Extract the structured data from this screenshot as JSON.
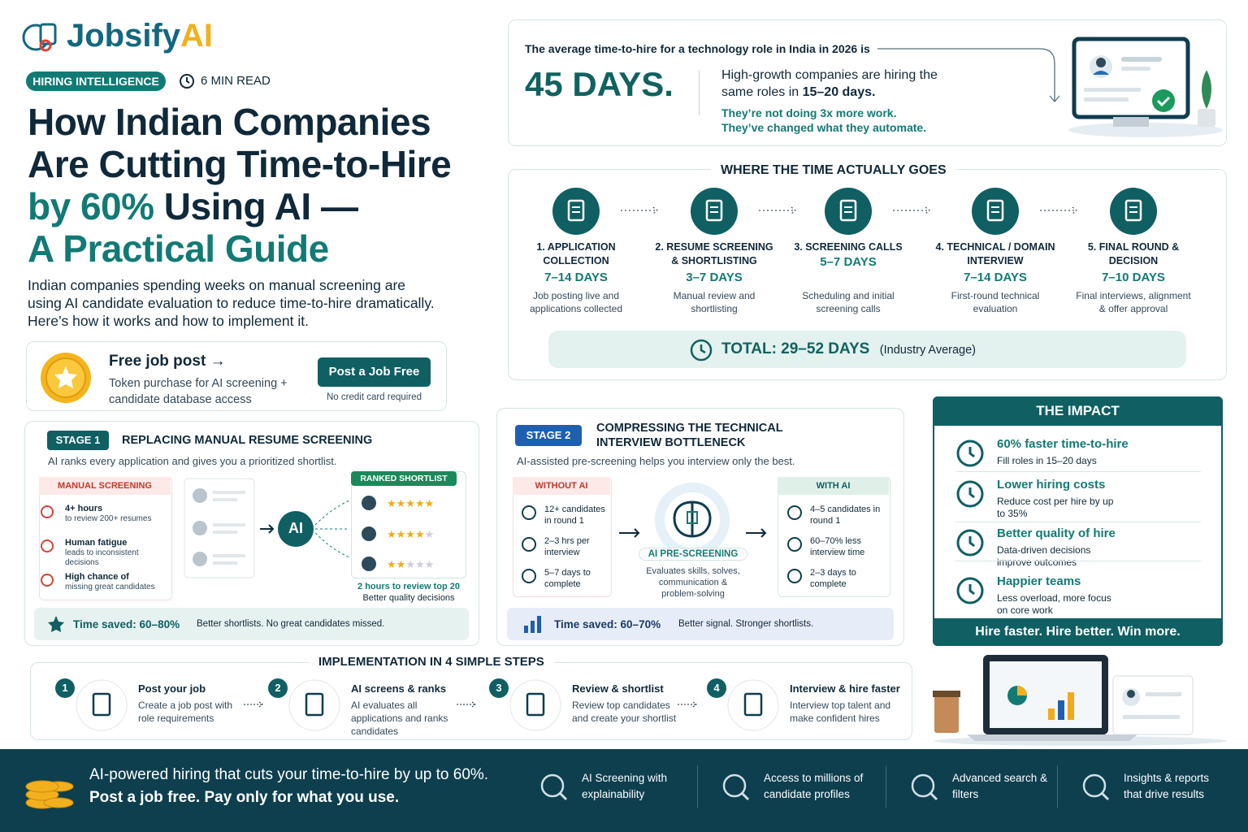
{
  "brand": {
    "name_part1": "Jobsify",
    "name_part2": "AI"
  },
  "header": {
    "tag": "HIRING INTELLIGENCE",
    "read_time": "6 MIN READ",
    "title": {
      "line1": "How Indian Companies",
      "line2": "Are Cutting Time-to-Hire",
      "line3_highlight": "by 60%",
      "line3_rest": " Using AI —",
      "line4": "A Practical Guide"
    },
    "intro": "Indian companies spending weeks on manual screening are using AI candidate evaluation to reduce time-to-hire dramatically. Here’s how it works and how to implement it."
  },
  "promo": {
    "title": "Free job post →",
    "text": "Token purchase for AI screening + candidate database access",
    "button": "Post a Job Free",
    "note": "No credit card required"
  },
  "stat": {
    "lead": "The average time-to-hire for a technology role in India in 2026 is",
    "value": "45 DAYS.",
    "text": "High-growth companies are hiring the same roles in ",
    "text_bold": "15–20 days.",
    "note_line1": "They’re not doing 3x more work.",
    "note_line2": "They’ve changed what they automate."
  },
  "timeline": {
    "title": "WHERE THE TIME ACTUALLY GOES",
    "steps": [
      {
        "label": "1. APPLICATION COLLECTION",
        "days": "7–14 DAYS",
        "desc": "Job posting live and applications collected"
      },
      {
        "label": "2. RESUME SCREENING & SHORTLISTING",
        "days": "3–7 DAYS",
        "desc": "Manual review and shortlisting"
      },
      {
        "label": "3. SCREENING CALLS",
        "days": "5–7 DAYS",
        "desc": "Scheduling and initial screening calls"
      },
      {
        "label": "4. TECHNICAL / DOMAIN INTERVIEW",
        "days": "7–14 DAYS",
        "desc": "First-round technical evaluation"
      },
      {
        "label": "5. FINAL ROUND & DECISION",
        "days": "7–10 DAYS",
        "desc": "Final interviews, alignment & offer approval"
      }
    ],
    "total": "TOTAL: 29–52 DAYS",
    "total_note": "(Industry Average)"
  },
  "stage1": {
    "tag": "STAGE 1",
    "title": "REPLACING MANUAL RESUME SCREENING",
    "subtitle": "AI ranks every application and gives you a prioritized shortlist.",
    "manual_title": "MANUAL SCREENING",
    "manual_items": [
      {
        "title": "4+ hours",
        "text": "to review 200+ resumes"
      },
      {
        "title": "Human fatigue",
        "text": "leads to inconsistent decisions"
      },
      {
        "title": "High chance of",
        "text": "missing great candidates"
      }
    ],
    "ai_label": "AI",
    "shortlist_title": "RANKED SHORTLIST",
    "shortlist_note": "2 hours to review top 20",
    "shortlist_subnote": "Better quality decisions",
    "saved": "Time saved: 60–80%",
    "saved_note": "Better shortlists. No great candidates missed."
  },
  "stage2": {
    "tag": "STAGE 2",
    "title_line1": "COMPRESSING THE TECHNICAL",
    "title_line2": "INTERVIEW BOTTLENECK",
    "subtitle": "AI-assisted pre-screening helps you interview only the best.",
    "without_title": "WITHOUT AI",
    "without_items": [
      "12+ candidates in round 1",
      "2–3 hrs per interview",
      "5–7 days to complete"
    ],
    "center_title": "AI PRE-SCREENING",
    "center_text": "Evaluates skills, solves, communication & problem-solving",
    "with_title": "WITH AI",
    "with_items": [
      "4–5 candidates in round 1",
      "60–70% less interview time",
      "2–3 days to complete"
    ],
    "saved": "Time saved: 60–70%",
    "saved_note": "Better signal. Stronger shortlists."
  },
  "impact": {
    "title": "THE IMPACT",
    "items": [
      {
        "title": "60% faster time-to-hire",
        "text": "Fill roles in 15–20 days"
      },
      {
        "title": "Lower hiring costs",
        "text": "Reduce cost per hire by up to 35%"
      },
      {
        "title": "Better quality of hire",
        "text": "Data-driven decisions improve outcomes"
      },
      {
        "title": "Happier teams",
        "text": "Less overload, more focus on core work"
      }
    ],
    "footer": "Hire faster. Hire better. Win more."
  },
  "steps": {
    "title": "IMPLEMENTATION IN 4 SIMPLE STEPS",
    "items": [
      {
        "num": "1",
        "title": "Post your job",
        "text": "Create a job post with role requirements"
      },
      {
        "num": "2",
        "title": "AI screens & ranks",
        "text": "AI evaluates all applications and ranks candidates"
      },
      {
        "num": "3",
        "title": "Review & shortlist",
        "text": "Review top candidates and create your shortlist"
      },
      {
        "num": "4",
        "title": "Interview & hire faster",
        "text": "Interview top talent and make confident hires"
      }
    ]
  },
  "footer": {
    "line1": "AI-powered hiring that cuts your time-to-hire by up to 60%.",
    "line2": "Post a job free. Pay only for what you use.",
    "features": [
      "AI Screening with explainability",
      "Access to millions of candidate profiles",
      "Advanced search & filters",
      "Insights & reports that drive results"
    ]
  }
}
